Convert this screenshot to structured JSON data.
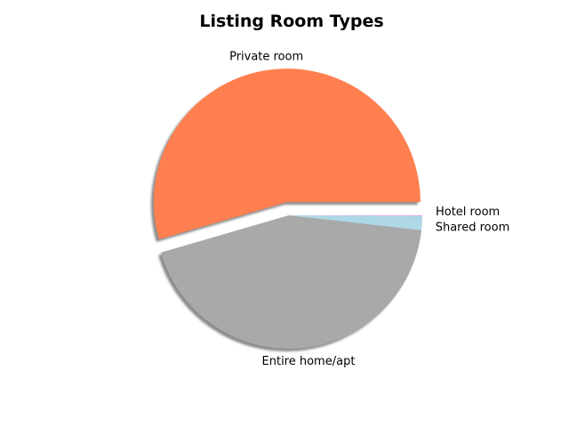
{
  "chart_data": {
    "type": "pie",
    "title": "Listing Room Types",
    "slices": [
      {
        "label": "Private room",
        "value": 54.5,
        "color": "#ff7f50",
        "exploded": true
      },
      {
        "label": "Entire home/apt",
        "value": 43.7,
        "color": "#a9a9a9",
        "exploded": false
      },
      {
        "label": "Shared room",
        "value": 1.7,
        "color": "#add8e6",
        "exploded": false
      },
      {
        "label": "Hotel room",
        "value": 0.1,
        "color": "#dda0dd",
        "exploded": false
      }
    ],
    "shadow": true,
    "start_angle_deg": 0,
    "direction": "counterclockwise",
    "legend": "none"
  }
}
